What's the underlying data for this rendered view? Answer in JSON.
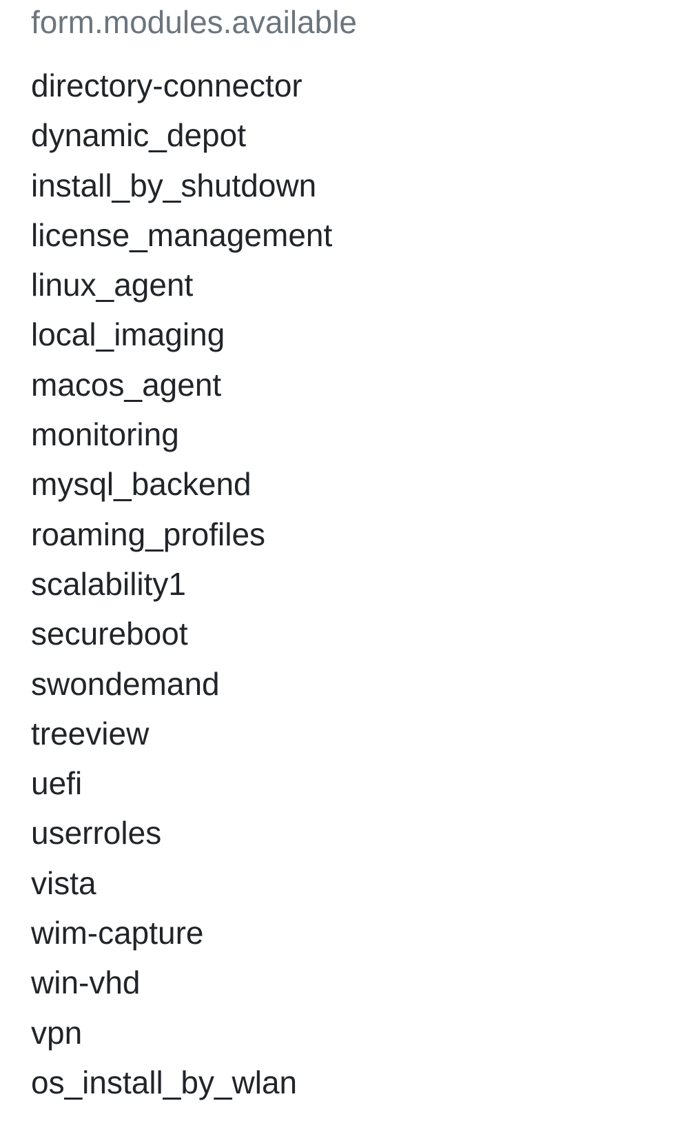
{
  "header": {
    "label": "form.modules.available"
  },
  "modules": [
    "directory-connector",
    "dynamic_depot",
    "install_by_shutdown",
    "license_management",
    "linux_agent",
    "local_imaging",
    "macos_agent",
    "monitoring",
    "mysql_backend",
    "roaming_profiles",
    "scalability1",
    "secureboot",
    "swondemand",
    "treeview",
    "uefi",
    "userroles",
    "vista",
    "wim-capture",
    "win-vhd",
    "vpn",
    "os_install_by_wlan"
  ],
  "colors": {
    "header_text": "#6c757d",
    "body_text": "#212529",
    "background": "#ffffff"
  }
}
